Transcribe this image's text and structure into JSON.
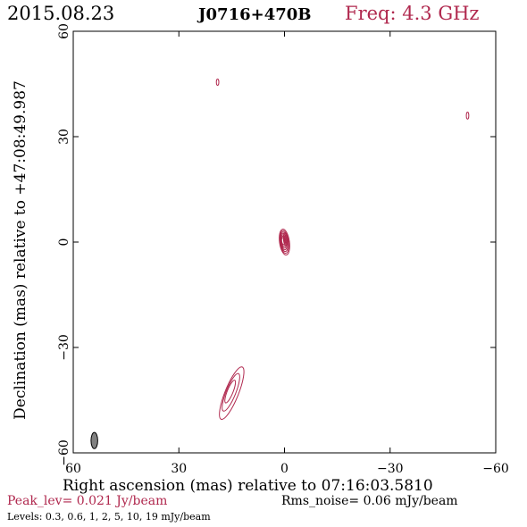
{
  "header": {
    "date": "2015.08.23",
    "source": "J0716+470B",
    "freq_label": "Freq:",
    "freq_value": "4.3 GHz"
  },
  "colors": {
    "contour": "#b0284e",
    "beam_fill": "#808080",
    "axes": "#000000"
  },
  "chart_data": {
    "type": "contour",
    "xlabel": "Right ascension (mas) relative to 07:16:03.5810",
    "ylabel": "Declination (mas) relative to +47:08:49.987",
    "xlim": [
      60,
      -60
    ],
    "ylim": [
      -60,
      60
    ],
    "x_ticks": [
      60,
      30,
      0,
      -30,
      -60
    ],
    "x_tick_labels": [
      "60",
      "30",
      "0",
      "−30",
      "−60"
    ],
    "y_ticks": [
      60,
      30,
      0,
      -30,
      -60
    ],
    "y_tick_labels": [
      "60",
      "30",
      "0",
      "−30",
      "−60"
    ],
    "peak": "Peak_lev=  0.021 Jy/beam",
    "rms": "Rms_noise= 0.06 mJy/beam",
    "levels_text": "Levels: 0.3, 0.6,   1,   2,   5,  10,   19 mJy/beam",
    "levels_mJy": [
      0.3,
      0.6,
      1,
      2,
      5,
      10,
      19
    ],
    "components": [
      {
        "x": 0,
        "y": 0,
        "sx": 1.4,
        "sy": 3.7,
        "pa": -8,
        "levels": 7
      },
      {
        "x": -0.3,
        "y": 0.8,
        "sx": 0.6,
        "sy": 1.8,
        "pa": -5,
        "levels": 2
      },
      {
        "x": 15,
        "y": -43,
        "sx": 1.9,
        "sy": 8.0,
        "pa": 22,
        "levels": 3
      },
      {
        "x": 19,
        "y": 45.5,
        "sx": 0.35,
        "sy": 0.9,
        "pa": 0,
        "levels": 1
      },
      {
        "x": -52,
        "y": 36,
        "sx": 0.35,
        "sy": 1.0,
        "pa": 0,
        "levels": 1
      }
    ],
    "beam": {
      "x": 54,
      "y": -56.5,
      "major_mas": 4.6,
      "minor_mas": 1.9,
      "pa_deg": 0
    }
  }
}
